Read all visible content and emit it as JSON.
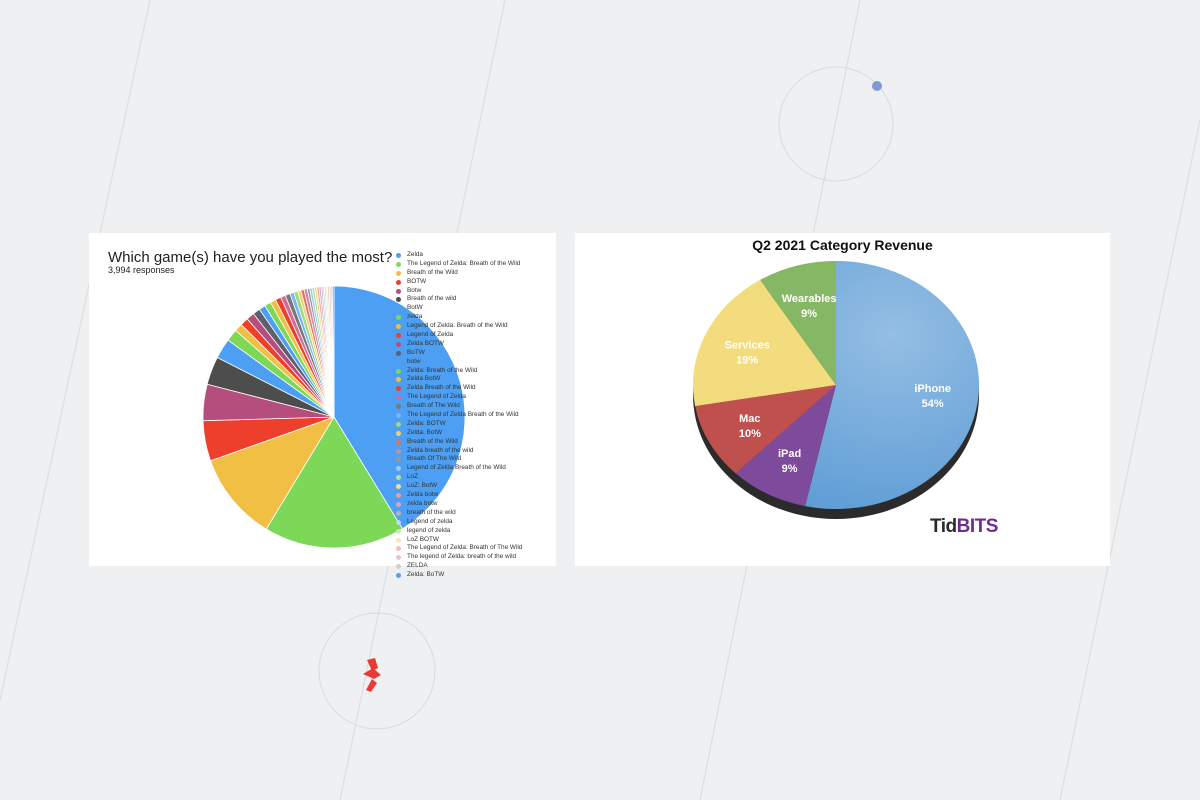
{
  "colors": {
    "page_bg": "#eff0f2",
    "card_bg": "#ffffff",
    "accent_dot": "#7e97d6",
    "logo_red": "#e83b34"
  },
  "left_chart": {
    "title": "Which game(s) have you played the most?",
    "subtitle": "3,994 responses"
  },
  "right_chart": {
    "title": "Q2 2021 Category Revenue",
    "brand_tid": "Tid",
    "brand_bits": "BITS"
  },
  "chart_data": [
    {
      "type": "pie",
      "title": "Which game(s) have you played the most?",
      "subtitle": "3,994 responses",
      "legend_position": "right",
      "slices": [
        {
          "label": "Zelda",
          "value": 41.5,
          "color": "#4c9ff2"
        },
        {
          "label": "The Legend of Zelda: Breath of the Wild",
          "value": 17.5,
          "color": "#7ed857"
        },
        {
          "label": "Breath of the Wild",
          "value": 11.0,
          "color": "#f2bf45"
        },
        {
          "label": "BOTW",
          "value": 5.0,
          "color": "#ee3e2c"
        },
        {
          "label": "Botw",
          "value": 4.5,
          "color": "#b54d7d"
        },
        {
          "label": "Breath of the wild",
          "value": 3.5,
          "color": "#4d4d4d"
        },
        {
          "label": "BotW",
          "value": 2.5,
          "color": "#4c9ff2"
        },
        {
          "label": "zelda",
          "value": 1.5,
          "color": "#7ed857"
        },
        {
          "label": "Legend of Zelda: Breath of the Wild",
          "value": 1.0,
          "color": "#f2bf45"
        },
        {
          "label": "Legend of Zelda",
          "value": 1.0,
          "color": "#ee3e2c"
        },
        {
          "label": "Zelda BOTW",
          "value": 1.0,
          "color": "#b54d7d"
        },
        {
          "label": "BoTW",
          "value": 0.9,
          "color": "#5e5e6e"
        },
        {
          "label": "botw",
          "value": 0.8,
          "color": "#4c9ff2"
        },
        {
          "label": "Zelda: Breath of the Wild",
          "value": 0.8,
          "color": "#7ed857"
        },
        {
          "label": "Zelda BotW",
          "value": 0.7,
          "color": "#f2bf45"
        },
        {
          "label": "Zelda Breath of the Wild",
          "value": 0.7,
          "color": "#ee3e2c"
        },
        {
          "label": "The Legend of Zelda",
          "value": 0.6,
          "color": "#d36b9a"
        },
        {
          "label": "Breath of The Wild",
          "value": 0.6,
          "color": "#777777"
        },
        {
          "label": "The Legend of Zelda Breath of the Wild",
          "value": 0.5,
          "color": "#78b6f0"
        },
        {
          "label": "Zelda: BOTW",
          "value": 0.5,
          "color": "#9ed97d"
        },
        {
          "label": "Zelda: BotW",
          "value": 0.4,
          "color": "#f5cf6e"
        },
        {
          "label": "Breath of the Wild",
          "value": 0.4,
          "color": "#e87060"
        },
        {
          "label": "Zelda breath of the wild",
          "value": 0.4,
          "color": "#c98aa6"
        },
        {
          "label": "Breath Of The Wild",
          "value": 0.3,
          "color": "#999999"
        },
        {
          "label": "Legend of Zelda Breath of the Wild",
          "value": 0.3,
          "color": "#9cc8f2"
        },
        {
          "label": "LoZ",
          "value": 0.3,
          "color": "#b5e29b"
        },
        {
          "label": "LoZ: BotW",
          "value": 0.3,
          "color": "#f7dc93"
        },
        {
          "label": "Zelda botw",
          "value": 0.25,
          "color": "#ef9a8f"
        },
        {
          "label": "zelda botw",
          "value": 0.25,
          "color": "#dca6c0"
        },
        {
          "label": "breath of the wild",
          "value": 0.2,
          "color": "#b5b5b5"
        },
        {
          "label": "Legend of zelda",
          "value": 0.2,
          "color": "#bcd9f5"
        },
        {
          "label": "legend of zelda",
          "value": 0.2,
          "color": "#cceab9"
        },
        {
          "label": "LoZ BOTW",
          "value": 0.2,
          "color": "#f9e7b7"
        },
        {
          "label": "The Legend of Zelda: Breath of The Wild",
          "value": 0.2,
          "color": "#f3bdb5"
        },
        {
          "label": "The legend of Zelda: breath of the wild",
          "value": 0.2,
          "color": "#e6c3d4"
        },
        {
          "label": "ZELDA",
          "value": 0.2,
          "color": "#cfcfcf"
        },
        {
          "label": "Zelda: BoTW",
          "value": 0.2,
          "color": "#4c9ff2"
        }
      ]
    },
    {
      "type": "pie",
      "title": "Q2 2021 Category Revenue",
      "slices": [
        {
          "label": "iPhone",
          "value": 54,
          "display": "54%",
          "color": "#5b9bd5"
        },
        {
          "label": "iPad",
          "value": 9,
          "display": "9%",
          "color": "#7e4a9c"
        },
        {
          "label": "Mac",
          "value": 10,
          "display": "10%",
          "color": "#c0504d"
        },
        {
          "label": "Services",
          "value": 19,
          "display": "19%",
          "color": "#f2dc7d"
        },
        {
          "label": "Wearables",
          "value": 9,
          "display": "9%",
          "color": "#86b764"
        }
      ]
    }
  ]
}
